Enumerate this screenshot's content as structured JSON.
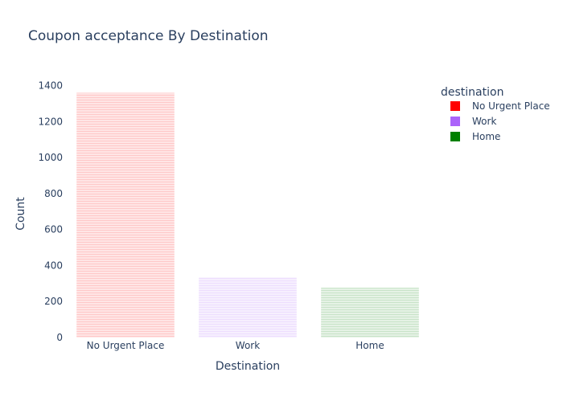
{
  "chart_data": {
    "type": "bar",
    "title": "Coupon acceptance By Destination",
    "xlabel": "Destination",
    "ylabel": "Count",
    "categories": [
      "No Urgent Place",
      "Work",
      "Home"
    ],
    "values": [
      1361,
      334,
      277
    ],
    "ylim": [
      0,
      1430
    ],
    "yticks": [
      0,
      200,
      400,
      600,
      800,
      1000,
      1200,
      1400
    ],
    "ytick_labels": [
      "0",
      "200",
      "400",
      "600",
      "800",
      "1000",
      "1200",
      "1400"
    ],
    "grid": false,
    "legend": {
      "title": "destination",
      "position": "top-right",
      "entries": [
        {
          "label": "No Urgent Place",
          "color": "#ff0000"
        },
        {
          "label": "Work",
          "color": "#ab63fa"
        },
        {
          "label": "Home",
          "color": "#008000"
        }
      ]
    },
    "bar_colors": [
      "#ff0000",
      "#ab63fa",
      "#008000"
    ],
    "bar_pattern": "horizontal-lines"
  }
}
